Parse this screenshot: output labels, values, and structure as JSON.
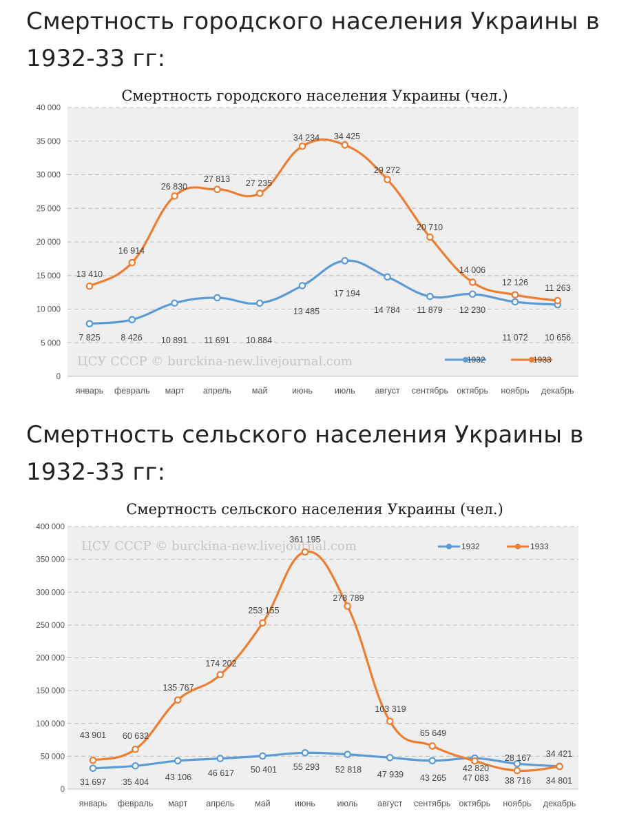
{
  "headings": [
    "Смертность городского населения Украины в 1932-33 гг:",
    "Смертность сельского населения Украины в 1932-33 гг:"
  ],
  "chart_data": [
    {
      "type": "line",
      "title": "Смертность городского населения Украины (чел.)",
      "categories": [
        "январь",
        "февраль",
        "март",
        "апрель",
        "май",
        "июнь",
        "июль",
        "август",
        "сентябрь",
        "октябрь",
        "ноябрь",
        "декабрь"
      ],
      "series": [
        {
          "name": "1932",
          "color": "#5b9bd5",
          "values": [
            7825,
            8426,
            10891,
            11691,
            10884,
            13485,
            17194,
            14784,
            11879,
            12230,
            11072,
            10656
          ],
          "labels": [
            "7 825",
            "8 426",
            "10 891",
            "11 691",
            "10 884",
            "13 485",
            "17 194",
            "14 784",
            "11 879",
            "12 230",
            "11 072",
            "10 656"
          ]
        },
        {
          "name": "1933",
          "color": "#ed7d31",
          "values": [
            13410,
            16914,
            26830,
            27813,
            27235,
            34234,
            34425,
            29272,
            20710,
            14006,
            12126,
            11263
          ],
          "labels": [
            "13 410",
            "16 914",
            "26 830",
            "27 813",
            "27 235",
            "34 234",
            "34 425",
            "29 272",
            "20 710",
            "14 006",
            "12 126",
            "11 263"
          ]
        }
      ],
      "ylim": [
        0,
        40000
      ],
      "yticks": [
        0,
        5000,
        10000,
        15000,
        20000,
        25000,
        30000,
        35000,
        40000
      ],
      "ytick_labels": [
        "0",
        "5 000",
        "10 000",
        "15 000",
        "20 000",
        "25 000",
        "30 000",
        "35 000",
        "40 000"
      ],
      "grid": true,
      "legend": "bottom-right",
      "watermark": "ЦСУ СССР © burckina-new.livejournal.com"
    },
    {
      "type": "line",
      "title": "Смертность сельского населения Украины (чел.)",
      "categories": [
        "январь",
        "февраль",
        "март",
        "апрель",
        "май",
        "июнь",
        "июль",
        "август",
        "сентябрь",
        "октябрь",
        "ноябрь",
        "декабрь"
      ],
      "series": [
        {
          "name": "1932",
          "color": "#5b9bd5",
          "values": [
            31697,
            35404,
            43106,
            46617,
            50401,
            55293,
            52818,
            47939,
            43265,
            47083,
            38716,
            34801
          ],
          "labels": [
            "31 697",
            "35 404",
            "43 106",
            "46 617",
            "50 401",
            "55 293",
            "52 818",
            "47 939",
            "43 265",
            "47 083",
            "38 716",
            "34 801"
          ]
        },
        {
          "name": "1933",
          "color": "#ed7d31",
          "values": [
            43901,
            60632,
            135767,
            174202,
            253155,
            361195,
            278789,
            103319,
            65649,
            42820,
            28167,
            34421
          ],
          "labels": [
            "43 901",
            "60 632",
            "135 767",
            "174 202",
            "253 155",
            "361 195",
            "278 789",
            "103 319",
            "65 649",
            "42 820",
            "28 167",
            "34 421"
          ]
        }
      ],
      "ylim": [
        0,
        400000
      ],
      "yticks": [
        0,
        50000,
        100000,
        150000,
        200000,
        250000,
        300000,
        350000,
        400000
      ],
      "ytick_labels": [
        "0",
        "50 000",
        "100 000",
        "150 000",
        "200 000",
        "250 000",
        "300 000",
        "350 000",
        "400 000"
      ],
      "grid": true,
      "legend": "top-right",
      "watermark": "ЦСУ СССР © burckina-new.livejournal.com"
    }
  ]
}
